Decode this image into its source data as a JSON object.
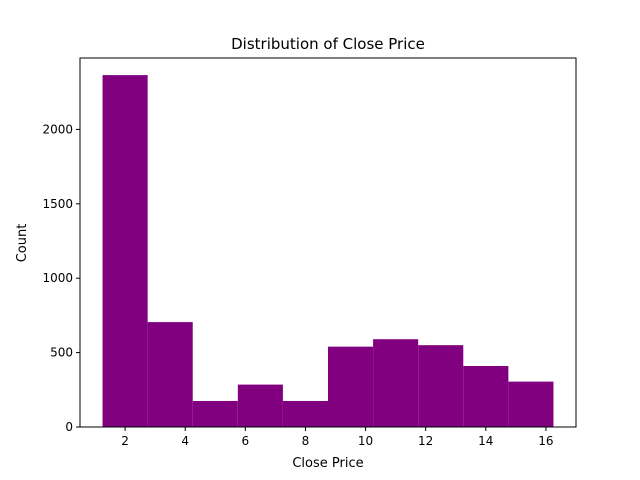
{
  "chart_data": {
    "type": "bar",
    "title": "Distribution of Close Price",
    "xlabel": "Close Price",
    "ylabel": "Count",
    "bin_edges": [
      1.25,
      2.75,
      4.25,
      5.75,
      7.25,
      8.75,
      10.25,
      11.75,
      13.25,
      14.75,
      16.25
    ],
    "values": [
      2365,
      705,
      175,
      285,
      175,
      540,
      590,
      550,
      410,
      305
    ],
    "xlim": [
      0.5,
      17.0
    ],
    "ylim": [
      0,
      2480
    ],
    "x_ticks": [
      2,
      4,
      6,
      8,
      10,
      12,
      14,
      16
    ],
    "x_tick_labels": [
      "2",
      "4",
      "6",
      "8",
      "10",
      "12",
      "14",
      "16"
    ],
    "y_ticks": [
      0,
      500,
      1000,
      1500,
      2000
    ],
    "y_tick_labels": [
      "0",
      "500",
      "1000",
      "1500",
      "2000"
    ],
    "bar_color": "#800080",
    "grid": false,
    "legend": "none"
  }
}
